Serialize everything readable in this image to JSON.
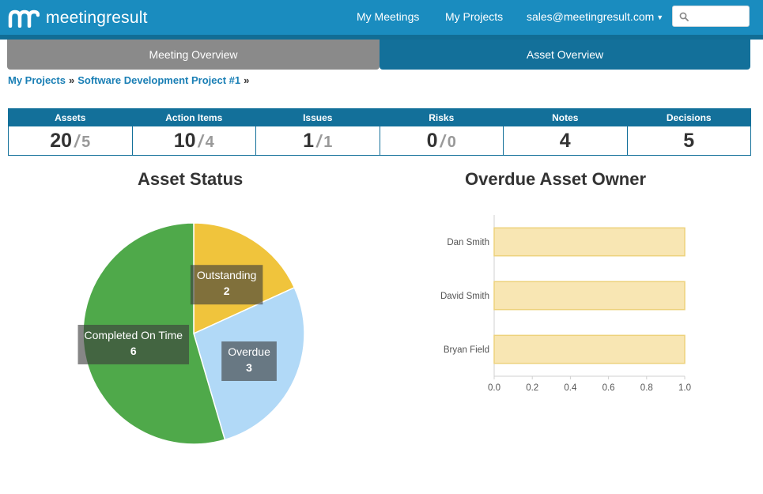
{
  "navbar": {
    "brand": "meetingresult",
    "links": [
      {
        "label": "My Meetings"
      },
      {
        "label": "My Projects"
      }
    ],
    "user": "sales@meetingresult.com",
    "search": {
      "placeholder": "",
      "value": ""
    }
  },
  "tabs": [
    {
      "label": "Meeting Overview",
      "active": false
    },
    {
      "label": "Asset Overview",
      "active": true
    }
  ],
  "breadcrumb": [
    {
      "label": "My Projects"
    },
    {
      "label": "Software Development Project #1"
    }
  ],
  "breadcrumb_separator": "»",
  "stats": [
    {
      "label": "Assets",
      "value": "20",
      "sub": "5"
    },
    {
      "label": "Action Items",
      "value": "10",
      "sub": "4"
    },
    {
      "label": "Issues",
      "value": "1",
      "sub": "1"
    },
    {
      "label": "Risks",
      "value": "0",
      "sub": "0"
    },
    {
      "label": "Notes",
      "value": "4",
      "sub": ""
    },
    {
      "label": "Decisions",
      "value": "5",
      "sub": ""
    }
  ],
  "stat_separator": "/",
  "chart_data": [
    {
      "type": "pie",
      "title": "Asset Status",
      "slices": [
        {
          "label": "Outstanding",
          "value": 2,
          "color": "#f0c43c"
        },
        {
          "label": "Overdue",
          "value": 3,
          "color": "#b1d9f7"
        },
        {
          "label": "Completed On Time",
          "value": 6,
          "color": "#4fa94a"
        }
      ]
    },
    {
      "type": "bar",
      "orientation": "horizontal",
      "title": "Overdue Asset Owner",
      "categories": [
        "Dan Smith",
        "David Smith",
        "Bryan Field"
      ],
      "values": [
        1,
        1,
        1
      ],
      "xlim": [
        0,
        1
      ],
      "xticks": [
        "0.0",
        "0.2",
        "0.4",
        "0.6",
        "0.8",
        "1.0"
      ],
      "bar_color": "#f8e6b3",
      "bar_border": "#edd27c"
    }
  ]
}
